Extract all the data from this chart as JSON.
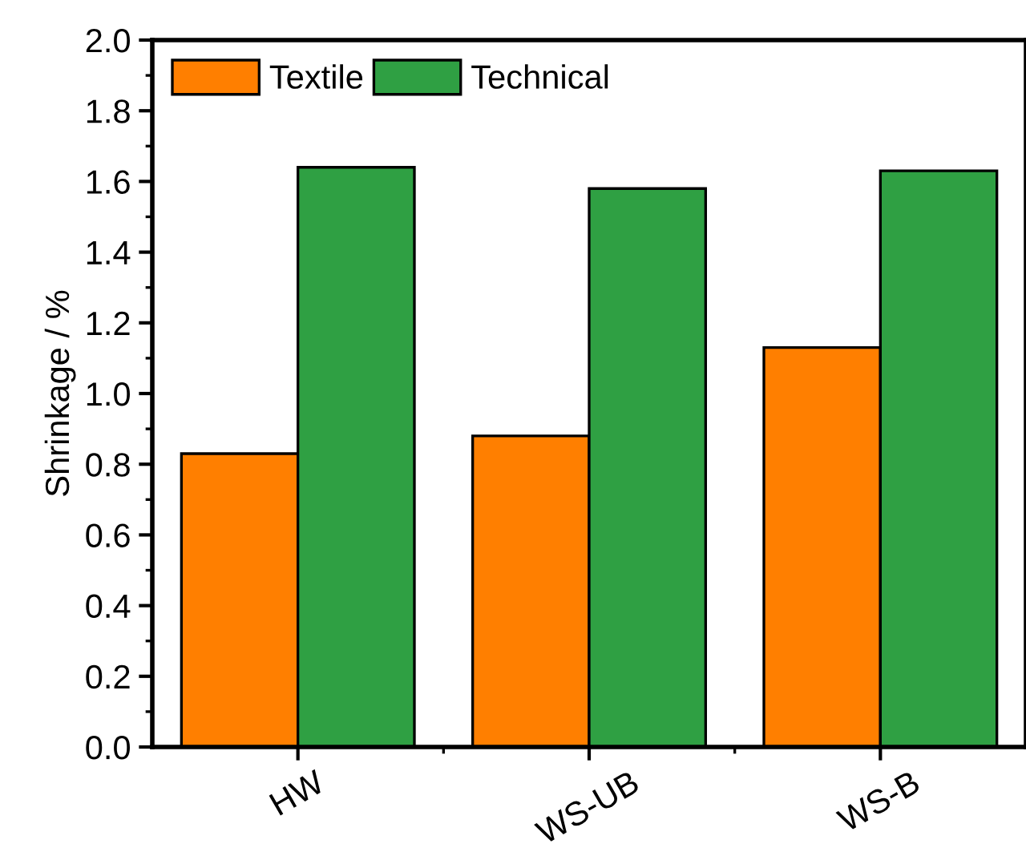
{
  "chart_data": {
    "type": "bar",
    "ylabel": "Shrinkage / %",
    "categories": [
      "HW",
      "WS-UB",
      "WS-B"
    ],
    "series": [
      {
        "name": "Textile",
        "color": "#ff7f00",
        "values": [
          0.83,
          0.88,
          1.13
        ]
      },
      {
        "name": "Technical",
        "color": "#2fa043",
        "values": [
          1.64,
          1.58,
          1.63
        ]
      }
    ],
    "ylim": [
      0,
      2.0
    ],
    "yticks": [
      {
        "value": 0,
        "label": "0.0"
      },
      {
        "value": 0.2,
        "label": "0.2"
      },
      {
        "value": 0.4,
        "label": "0.4"
      },
      {
        "value": 0.6,
        "label": "0.6"
      },
      {
        "value": 0.8,
        "label": "0.8"
      },
      {
        "value": 1.0,
        "label": "1.0"
      },
      {
        "value": 1.2,
        "label": "1.2"
      },
      {
        "value": 1.4,
        "label": "1.4"
      },
      {
        "value": 1.6,
        "label": "1.6"
      },
      {
        "value": 1.8,
        "label": "1.8"
      },
      {
        "value": 2.0,
        "label": "2.0"
      }
    ],
    "grid": false,
    "legend": "top left"
  }
}
